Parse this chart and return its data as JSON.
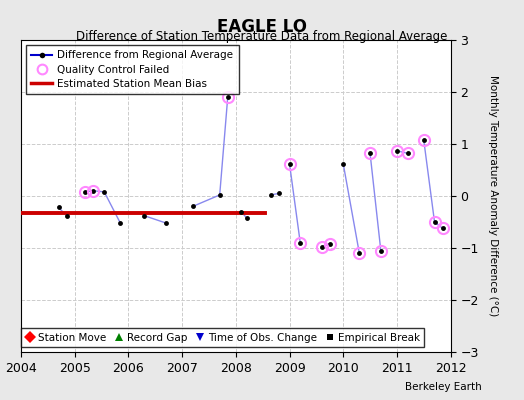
{
  "title": "EAGLE LO",
  "subtitle": "Difference of Station Temperature Data from Regional Average",
  "ylabel_right": "Monthly Temperature Anomaly Difference (°C)",
  "background_color": "#e8e8e8",
  "plot_bg_color": "#ffffff",
  "xlim": [
    2004,
    2012
  ],
  "ylim": [
    -3,
    3
  ],
  "yticks": [
    -3,
    -2,
    -1,
    0,
    1,
    2,
    3
  ],
  "xticks": [
    2004,
    2005,
    2006,
    2007,
    2008,
    2009,
    2010,
    2011,
    2012
  ],
  "bias_line_x": [
    2004.0,
    2008.55
  ],
  "bias_line_y": [
    -0.32,
    -0.32
  ],
  "watermark": "Berkeley Earth",
  "segments": [
    [
      [
        2004.7,
        -0.22
      ],
      [
        2004.85,
        -0.38
      ]
    ],
    [
      [
        2005.2,
        0.08
      ],
      [
        2005.35,
        0.1
      ],
      [
        2005.55,
        0.08
      ],
      [
        2005.85,
        -0.52
      ]
    ],
    [
      [
        2006.3,
        -0.38
      ],
      [
        2006.7,
        -0.52
      ]
    ],
    [
      [
        2007.2,
        -0.2
      ],
      [
        2007.7,
        0.02
      ],
      [
        2007.85,
        1.9
      ]
    ],
    [
      [
        2008.1,
        -0.3
      ],
      [
        2008.2,
        -0.42
      ]
    ],
    [
      [
        2008.65,
        0.02
      ],
      [
        2008.8,
        0.05
      ]
    ],
    [
      [
        2009.0,
        0.62
      ],
      [
        2009.2,
        -0.9
      ]
    ],
    [
      [
        2009.6,
        -0.98
      ],
      [
        2009.75,
        -0.92
      ]
    ],
    [
      [
        2010.0,
        0.62
      ],
      [
        2010.3,
        -1.1
      ]
    ],
    [
      [
        2010.5,
        0.82
      ],
      [
        2010.7,
        -1.05
      ]
    ],
    [
      [
        2011.0,
        0.87
      ],
      [
        2011.2,
        0.82
      ]
    ],
    [
      [
        2011.5,
        1.07
      ],
      [
        2011.7,
        -0.5
      ],
      [
        2011.85,
        -0.62
      ]
    ]
  ],
  "qc_failed_x": [
    2005.2,
    2005.35,
    2007.85,
    2009.0,
    2009.2,
    2009.6,
    2009.75,
    2010.3,
    2010.5,
    2010.7,
    2011.0,
    2011.2,
    2011.5,
    2011.7,
    2011.85
  ],
  "qc_failed_y": [
    0.08,
    0.1,
    1.9,
    0.62,
    -0.9,
    -0.98,
    -0.92,
    -1.1,
    0.82,
    -1.05,
    0.87,
    0.82,
    1.07,
    -0.5,
    -0.62
  ],
  "line_color": "#0000cc",
  "line_color_light": "#8888ee",
  "dot_color": "#000000",
  "qc_color": "#ff88ff",
  "bias_color": "#cc0000",
  "grid_color": "#cccccc",
  "grid_linestyle": "--"
}
